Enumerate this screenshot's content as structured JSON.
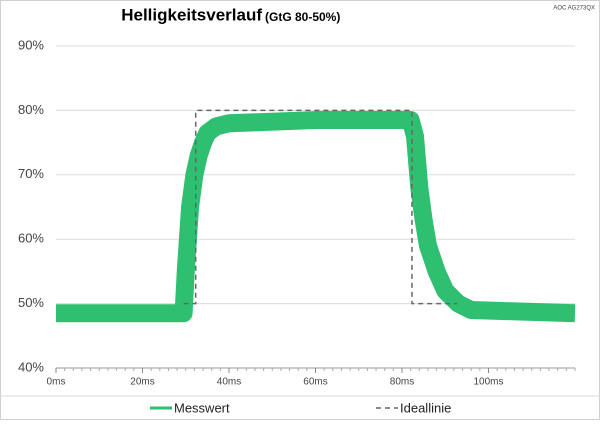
{
  "chart_data": {
    "type": "line",
    "title": "Helligkeitsverlauf",
    "subtitle": "(GtG 80-50%)",
    "annotation": "AOC AG273QX",
    "xlim": [
      0,
      120
    ],
    "xticks": [
      {
        "value": 0,
        "label": "0ms"
      },
      {
        "value": 20,
        "label": "20ms"
      },
      {
        "value": 40,
        "label": "40ms"
      },
      {
        "value": 60,
        "label": "60ms"
      },
      {
        "value": 80,
        "label": "80ms"
      },
      {
        "value": 100,
        "label": "100ms"
      }
    ],
    "ylim": [
      40,
      90
    ],
    "yticks": [
      {
        "value": 40,
        "label": "40%"
      },
      {
        "value": 50,
        "label": "50%"
      },
      {
        "value": 60,
        "label": "60%"
      },
      {
        "value": 70,
        "label": "70%"
      },
      {
        "value": 80,
        "label": "80%"
      },
      {
        "value": 90,
        "label": "90%"
      }
    ],
    "grid": true,
    "legend": "bottom",
    "series": [
      {
        "name": "Messwert",
        "color": "#2fbf71",
        "style": "solid",
        "x": [
          0,
          29.5,
          30,
          31,
          32,
          33,
          34,
          35,
          37,
          40,
          60,
          82,
          83,
          84,
          85,
          86,
          88,
          90,
          93,
          96,
          120
        ],
        "values": [
          48.5,
          48.5,
          55,
          65,
          70,
          73,
          75,
          76.5,
          77.5,
          78,
          78.5,
          78.5,
          76,
          68,
          63,
          59,
          55,
          52,
          50,
          49,
          48.5
        ]
      },
      {
        "name": "Ideallinie",
        "color": "#666666",
        "style": "dashed",
        "x": [
          29.5,
          32.3,
          32.3,
          82.3,
          82.3,
          92.8
        ],
        "values": [
          50,
          50,
          80,
          80,
          50,
          50
        ]
      }
    ]
  }
}
